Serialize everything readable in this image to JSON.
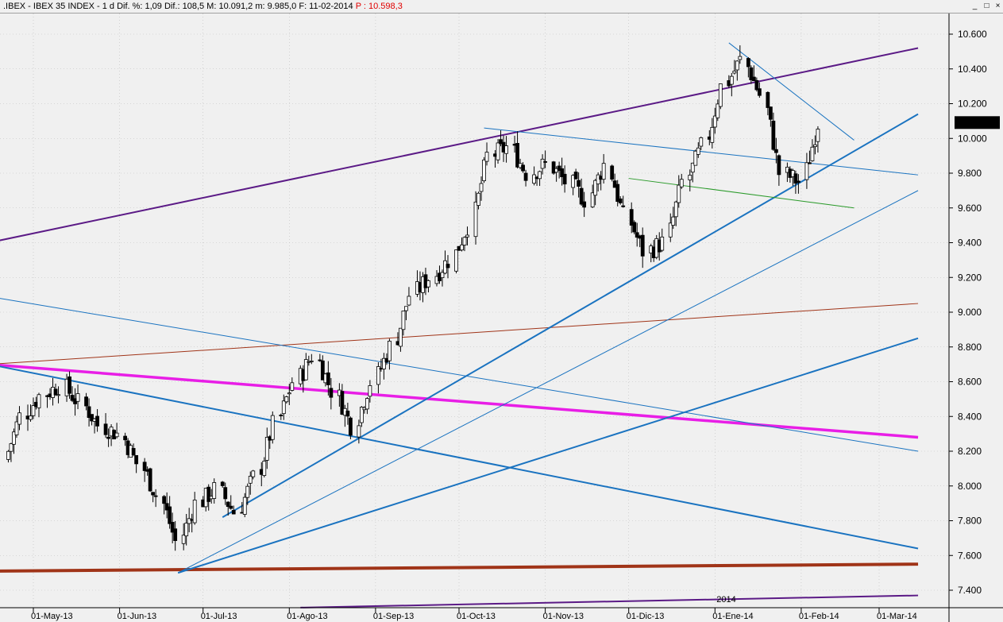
{
  "header": {
    "instrument": ".IBEX - IBEX 35 INDEX - 1 d",
    "stats": "Dif. %: 1,09  Dif.: 108,5  M: 10.091,2  m: 9.985,0  F: 11-02-2014",
    "price": "P : 10.598,3"
  },
  "window_buttons": {
    "minimize": "_",
    "maximize": "□",
    "close": "×"
  },
  "colors": {
    "up_candle": "#ffffff",
    "down_candle": "#000000",
    "grid": "#bdbdbd",
    "blue": "#1a73c0",
    "purple": "#5b1a86",
    "magenta": "#e81ee6",
    "brown": "#a03418",
    "green": "#2a9a2a"
  },
  "chart_data": {
    "type": "candlestick",
    "title": "IBEX 35 INDEX",
    "period": "1 d",
    "ylim": [
      7300,
      10750
    ],
    "yticks": [
      "10.600",
      "10.400",
      "10.200",
      "10.000",
      "9.800",
      "9.600",
      "9.400",
      "9.200",
      "9.000",
      "8.800",
      "8.600",
      "8.400",
      "8.200",
      "8.000",
      "7.800",
      "7.600",
      "7.400"
    ],
    "ytick_values": [
      10600,
      10400,
      10200,
      10000,
      9800,
      9600,
      9400,
      9200,
      9000,
      8800,
      8600,
      8400,
      8200,
      8000,
      7800,
      7600,
      7400
    ],
    "xtick_labels": [
      "01-May-13",
      "01-Jun-13",
      "01-Jul-13",
      "01-Ago-13",
      "01-Sep-13",
      "01-Oct-13",
      "01-Nov-13",
      "01-Dic-13",
      "01-Ene-14",
      "01-Feb-14",
      "01-Mar-14"
    ],
    "xtick_dates": [
      "2013-05-01",
      "2013-06-01",
      "2013-07-01",
      "2013-08-01",
      "2013-09-01",
      "2013-10-01",
      "2013-11-01",
      "2013-12-01",
      "2014-01-01",
      "2014-02-01",
      "2014-03-01"
    ],
    "year_marker": "2014",
    "last_value_label": "10.091,2",
    "last_value": 10091.2,
    "weekly_close": [
      [
        "2013-04-22",
        8150
      ],
      [
        "2013-04-29",
        8400
      ],
      [
        "2013-05-06",
        8520
      ],
      [
        "2013-05-13",
        8580
      ],
      [
        "2013-05-20",
        8480
      ],
      [
        "2013-05-27",
        8350
      ],
      [
        "2013-06-03",
        8300
      ],
      [
        "2013-06-10",
        8130
      ],
      [
        "2013-06-17",
        7950
      ],
      [
        "2013-06-24",
        7680
      ],
      [
        "2013-07-01",
        7900
      ],
      [
        "2013-07-08",
        7980
      ],
      [
        "2013-07-15",
        7850
      ],
      [
        "2013-07-22",
        8050
      ],
      [
        "2013-07-29",
        8350
      ],
      [
        "2013-08-05",
        8600
      ],
      [
        "2013-08-12",
        8750
      ],
      [
        "2013-08-19",
        8550
      ],
      [
        "2013-08-26",
        8350
      ],
      [
        "2013-09-02",
        8600
      ],
      [
        "2013-09-09",
        8800
      ],
      [
        "2013-09-16",
        9100
      ],
      [
        "2013-09-23",
        9200
      ],
      [
        "2013-09-30",
        9300
      ],
      [
        "2013-10-07",
        9500
      ],
      [
        "2013-10-14",
        9900
      ],
      [
        "2013-10-21",
        9950
      ],
      [
        "2013-10-28",
        9800
      ],
      [
        "2013-11-04",
        9850
      ],
      [
        "2013-11-11",
        9750
      ],
      [
        "2013-11-18",
        9650
      ],
      [
        "2013-11-25",
        9850
      ],
      [
        "2013-12-02",
        9550
      ],
      [
        "2013-12-09",
        9350
      ],
      [
        "2013-12-16",
        9400
      ],
      [
        "2013-12-23",
        9750
      ],
      [
        "2013-12-30",
        9950
      ],
      [
        "2014-01-06",
        10300
      ],
      [
        "2014-01-13",
        10450
      ],
      [
        "2014-01-20",
        10250
      ],
      [
        "2014-01-27",
        9800
      ],
      [
        "2014-02-03",
        9750
      ],
      [
        "2014-02-10",
        10091
      ]
    ],
    "trendlines": [
      {
        "color": "purple",
        "from": [
          "2013-04-15",
          9400
        ],
        "to": [
          "2014-03-15",
          10520
        ]
      },
      {
        "color": "purple",
        "from": [
          "2013-08-05",
          7300
        ],
        "to": [
          "2014-03-15",
          7370
        ]
      },
      {
        "color": "magenta",
        "from": [
          "2013-04-15",
          8700
        ],
        "to": [
          "2014-03-15",
          8280
        ]
      },
      {
        "color": "brown",
        "from": [
          "2013-04-15",
          8700
        ],
        "to": [
          "2014-03-15",
          9050
        ]
      },
      {
        "color": "brown",
        "from": [
          "2013-04-15",
          7510
        ],
        "to": [
          "2014-03-15",
          7550
        ]
      },
      {
        "color": "blue",
        "from": [
          "2013-04-15",
          8700
        ],
        "to": [
          "2014-03-15",
          7640
        ]
      },
      {
        "color": "blue",
        "from": [
          "2013-04-15",
          9090
        ],
        "to": [
          "2014-03-15",
          8200
        ]
      },
      {
        "color": "blue",
        "from": [
          "2013-06-22",
          7500
        ],
        "to": [
          "2014-03-15",
          8850
        ]
      },
      {
        "color": "blue",
        "from": [
          "2013-06-22",
          7500
        ],
        "to": [
          "2014-03-15",
          9700
        ]
      },
      {
        "color": "blue",
        "from": [
          "2013-07-08",
          7820
        ],
        "to": [
          "2014-03-15",
          10140
        ]
      },
      {
        "color": "blue",
        "from": [
          "2013-10-10",
          10060
        ],
        "to": [
          "2014-03-15",
          9790
        ]
      },
      {
        "color": "blue",
        "from": [
          "2014-01-06",
          10550
        ],
        "to": [
          "2014-02-20",
          9990
        ]
      },
      {
        "color": "green",
        "from": [
          "2013-12-01",
          9770
        ],
        "to": [
          "2014-02-20",
          9600
        ]
      }
    ]
  }
}
